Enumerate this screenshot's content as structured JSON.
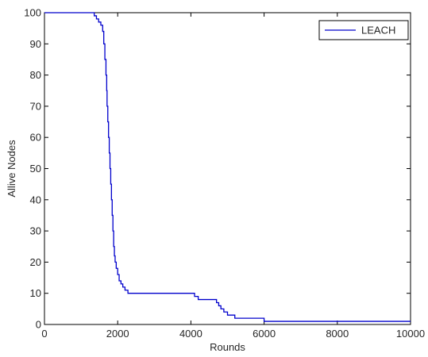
{
  "chart_data": {
    "type": "line",
    "title": "",
    "xlabel": "Rounds",
    "ylabel": "Allive Nodes",
    "xlim": [
      0,
      10000
    ],
    "ylim": [
      0,
      100
    ],
    "xticks": [
      0,
      2000,
      4000,
      6000,
      8000,
      10000
    ],
    "yticks": [
      0,
      10,
      20,
      30,
      40,
      50,
      60,
      70,
      80,
      90,
      100
    ],
    "xtick_labels": [
      "0",
      "2000",
      "4000",
      "6000",
      "8000",
      "10000"
    ],
    "ytick_labels": [
      "0",
      "10",
      "20",
      "30",
      "40",
      "50",
      "60",
      "70",
      "80",
      "90",
      "100"
    ],
    "grid": false,
    "legend_position": "top-right",
    "line_style": "step",
    "series": [
      {
        "name": "LEACH",
        "color": "#0000cc",
        "x": [
          0,
          1320,
          1360,
          1420,
          1480,
          1540,
          1590,
          1620,
          1650,
          1680,
          1700,
          1710,
          1730,
          1750,
          1770,
          1790,
          1810,
          1830,
          1850,
          1870,
          1890,
          1910,
          1930,
          1960,
          2000,
          2040,
          2090,
          2140,
          2200,
          2280,
          4000,
          4100,
          4150,
          4200,
          4620,
          4700,
          4760,
          4820,
          4900,
          5000,
          5200,
          5800,
          6000,
          10000
        ],
        "y": [
          100,
          100,
          99,
          98,
          97,
          96,
          94,
          90,
          85,
          80,
          75,
          70,
          65,
          60,
          55,
          50,
          45,
          40,
          35,
          30,
          25,
          22,
          20,
          18,
          16,
          14,
          13,
          12,
          11,
          10,
          10,
          9,
          9,
          8,
          8,
          7,
          6,
          5,
          4,
          3,
          2,
          2,
          1,
          1
        ]
      }
    ]
  }
}
